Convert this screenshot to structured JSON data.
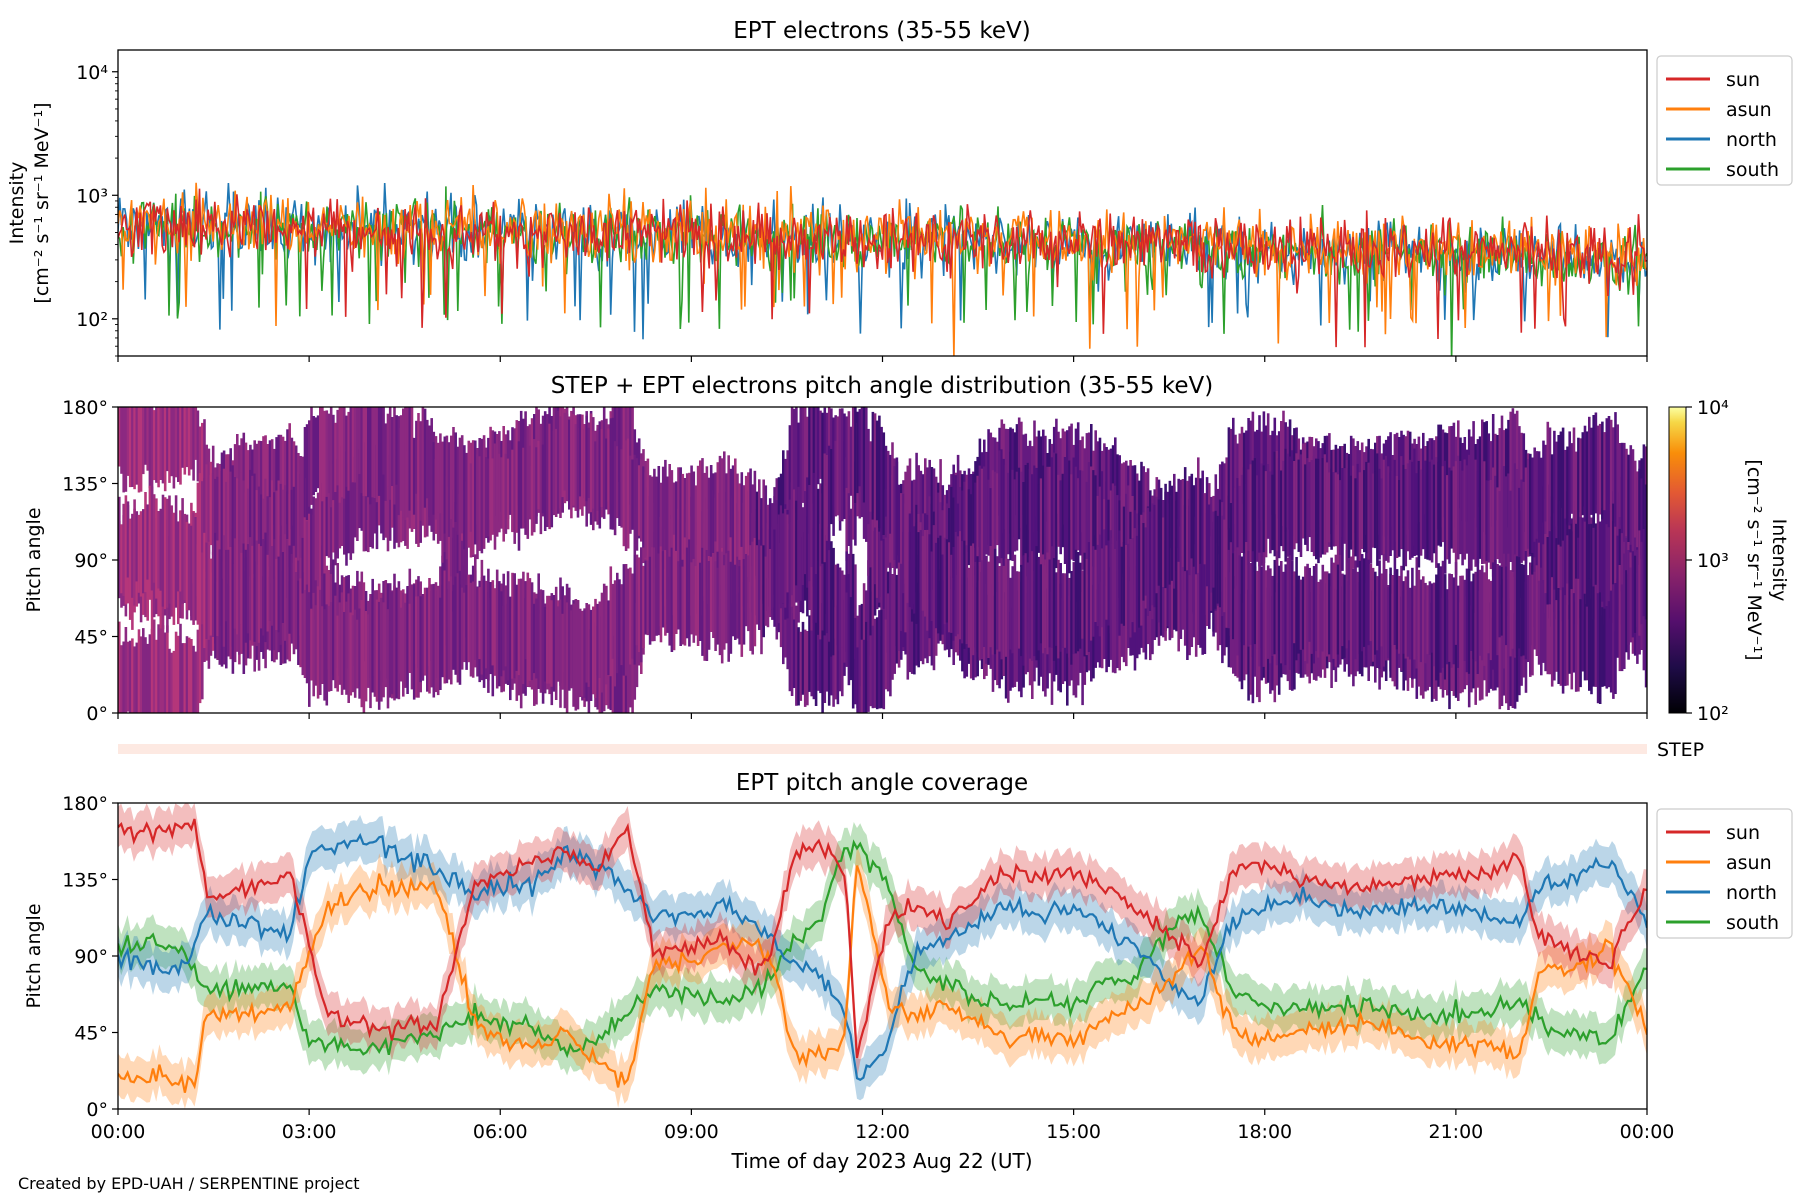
{
  "colors": {
    "sun": "#d62728",
    "asun": "#ff7f0e",
    "north": "#1f77b4",
    "south": "#2ca02c",
    "step_strip": "#fde9e2"
  },
  "chart_data": [
    {
      "type": "line",
      "title": "EPT electrons (35-55 keV)",
      "ylabel_line1": "Intensity",
      "ylabel_line2": "[cm⁻² s⁻¹ sr⁻¹ MeV⁻¹]",
      "yscale": "log",
      "ylim": [
        50,
        15000
      ],
      "yticks": [
        {
          "v": 100,
          "label": "10²"
        },
        {
          "v": 1000,
          "label": "10³"
        },
        {
          "v": 10000,
          "label": "10⁴"
        }
      ],
      "xlim_hours": [
        0,
        24
      ],
      "series": [
        {
          "name": "sun",
          "color": "#d62728",
          "level_start": 560,
          "level_end": 330
        },
        {
          "name": "asun",
          "color": "#ff7f0e",
          "level_start": 600,
          "level_end": 330
        },
        {
          "name": "north",
          "color": "#1f77b4",
          "level_start": 580,
          "level_end": 300
        },
        {
          "name": "south",
          "color": "#2ca02c",
          "level_start": 580,
          "level_end": 300
        }
      ],
      "legend": [
        "sun",
        "asun",
        "north",
        "south"
      ],
      "legend_position": "outside-right"
    },
    {
      "type": "heatmap",
      "title": "STEP + EPT electrons pitch angle distribution (35-55 keV)",
      "ylabel": "Pitch angle",
      "ylim": [
        0,
        180
      ],
      "yticks": [
        {
          "v": 0,
          "label": "0°"
        },
        {
          "v": 45,
          "label": "45°"
        },
        {
          "v": 90,
          "label": "90°"
        },
        {
          "v": 135,
          "label": "135°"
        },
        {
          "v": 180,
          "label": "180°"
        }
      ],
      "colorbar": {
        "label_line1": "Intensity",
        "label_line2": "[cm⁻² s⁻¹ sr⁻¹ MeV⁻¹]",
        "scale": "log",
        "range": [
          100,
          10000
        ],
        "ticks": [
          {
            "v": 100,
            "label": "10²"
          },
          {
            "v": 1000,
            "label": "10³"
          },
          {
            "v": 10000,
            "label": "10⁴"
          }
        ]
      },
      "step_label": "STEP"
    },
    {
      "type": "line",
      "title": "EPT pitch angle coverage",
      "ylabel": "Pitch angle",
      "xlabel": "Time of day 2023 Aug 22 (UT)",
      "ylim": [
        0,
        180
      ],
      "yticks": [
        {
          "v": 0,
          "label": "0°"
        },
        {
          "v": 45,
          "label": "45°"
        },
        {
          "v": 90,
          "label": "90°"
        },
        {
          "v": 135,
          "label": "135°"
        },
        {
          "v": 180,
          "label": "180°"
        }
      ],
      "xticks": [
        {
          "h": 0,
          "label": "00:00"
        },
        {
          "h": 3,
          "label": "03:00"
        },
        {
          "h": 6,
          "label": "06:00"
        },
        {
          "h": 9,
          "label": "09:00"
        },
        {
          "h": 12,
          "label": "12:00"
        },
        {
          "h": 15,
          "label": "15:00"
        },
        {
          "h": 18,
          "label": "18:00"
        },
        {
          "h": 21,
          "label": "21:00"
        },
        {
          "h": 24,
          "label": "00:00"
        }
      ],
      "series": [
        {
          "name": "sun",
          "color": "#d62728",
          "points": [
            [
              0,
              165
            ],
            [
              0.5,
              162
            ],
            [
              1.2,
              170
            ],
            [
              1.4,
              125
            ],
            [
              2,
              130
            ],
            [
              2.7,
              138
            ],
            [
              3.3,
              55
            ],
            [
              4.2,
              48
            ],
            [
              5,
              50
            ],
            [
              5.6,
              130
            ],
            [
              6,
              140
            ],
            [
              6.5,
              145
            ],
            [
              7,
              152
            ],
            [
              7.5,
              140
            ],
            [
              8,
              165
            ],
            [
              8.4,
              95
            ],
            [
              9,
              95
            ],
            [
              9.5,
              100
            ],
            [
              10,
              82
            ],
            [
              10.3,
              95
            ],
            [
              10.6,
              150
            ],
            [
              11,
              155
            ],
            [
              11.4,
              145
            ],
            [
              11.6,
              30
            ],
            [
              12.1,
              115
            ],
            [
              12.5,
              120
            ],
            [
              13,
              110
            ],
            [
              13.6,
              130
            ],
            [
              14,
              140
            ],
            [
              14.5,
              135
            ],
            [
              15,
              140
            ],
            [
              15.4,
              130
            ],
            [
              16,
              118
            ],
            [
              16.6,
              100
            ],
            [
              17,
              85
            ],
            [
              17.5,
              140
            ],
            [
              18,
              145
            ],
            [
              18.5,
              135
            ],
            [
              19.5,
              130
            ],
            [
              20.5,
              135
            ],
            [
              21.5,
              138
            ],
            [
              22,
              148
            ],
            [
              22.3,
              100
            ],
            [
              22.8,
              95
            ],
            [
              23.4,
              85
            ],
            [
              24,
              130
            ]
          ]
        },
        {
          "name": "asun",
          "color": "#ff7f0e",
          "points": [
            [
              0,
              18
            ],
            [
              0.5,
              20
            ],
            [
              1.2,
              15
            ],
            [
              1.4,
              60
            ],
            [
              2,
              55
            ],
            [
              2.7,
              60
            ],
            [
              3.3,
              120
            ],
            [
              4,
              130
            ],
            [
              5,
              130
            ],
            [
              5.6,
              50
            ],
            [
              6,
              40
            ],
            [
              6.5,
              35
            ],
            [
              7,
              45
            ],
            [
              7.5,
              30
            ],
            [
              8,
              15
            ],
            [
              8.4,
              85
            ],
            [
              9,
              90
            ],
            [
              9.5,
              95
            ],
            [
              10,
              100
            ],
            [
              10.3,
              80
            ],
            [
              10.6,
              35
            ],
            [
              11,
              30
            ],
            [
              11.4,
              40
            ],
            [
              11.6,
              145
            ],
            [
              12.1,
              60
            ],
            [
              12.5,
              55
            ],
            [
              13,
              60
            ],
            [
              13.6,
              50
            ],
            [
              14,
              40
            ],
            [
              14.5,
              45
            ],
            [
              15,
              40
            ],
            [
              15.4,
              50
            ],
            [
              16,
              60
            ],
            [
              16.6,
              80
            ],
            [
              17,
              95
            ],
            [
              17.5,
              45
            ],
            [
              18,
              40
            ],
            [
              18.5,
              45
            ],
            [
              19.5,
              50
            ],
            [
              20.5,
              40
            ],
            [
              21.5,
              38
            ],
            [
              22,
              30
            ],
            [
              22.3,
              80
            ],
            [
              22.8,
              85
            ],
            [
              23.4,
              95
            ],
            [
              24,
              45
            ]
          ]
        },
        {
          "name": "north",
          "color": "#1f77b4",
          "points": [
            [
              0,
              90
            ],
            [
              0.5,
              85
            ],
            [
              1,
              80
            ],
            [
              1.4,
              115
            ],
            [
              2,
              110
            ],
            [
              2.7,
              105
            ],
            [
              3,
              150
            ],
            [
              3.5,
              155
            ],
            [
              4,
              160
            ],
            [
              5,
              140
            ],
            [
              5.6,
              125
            ],
            [
              6,
              130
            ],
            [
              6.5,
              135
            ],
            [
              7,
              150
            ],
            [
              7.5,
              145
            ],
            [
              8,
              130
            ],
            [
              8.4,
              115
            ],
            [
              9,
              115
            ],
            [
              9.5,
              118
            ],
            [
              10,
              110
            ],
            [
              10.3,
              100
            ],
            [
              10.6,
              85
            ],
            [
              11,
              80
            ],
            [
              11.4,
              60
            ],
            [
              11.6,
              20
            ],
            [
              12,
              30
            ],
            [
              12.5,
              90
            ],
            [
              13,
              100
            ],
            [
              13.6,
              110
            ],
            [
              14,
              120
            ],
            [
              14.5,
              115
            ],
            [
              15,
              120
            ],
            [
              15.4,
              110
            ],
            [
              16,
              95
            ],
            [
              16.6,
              70
            ],
            [
              17,
              65
            ],
            [
              17.5,
              110
            ],
            [
              18,
              120
            ],
            [
              18.5,
              125
            ],
            [
              19.5,
              115
            ],
            [
              20.5,
              120
            ],
            [
              21.5,
              115
            ],
            [
              22,
              110
            ],
            [
              22.3,
              130
            ],
            [
              22.8,
              135
            ],
            [
              23.4,
              145
            ],
            [
              24,
              110
            ]
          ]
        },
        {
          "name": "south",
          "color": "#2ca02c",
          "points": [
            [
              0,
              95
            ],
            [
              0.5,
              100
            ],
            [
              1,
              95
            ],
            [
              1.4,
              70
            ],
            [
              2,
              70
            ],
            [
              2.7,
              72
            ],
            [
              3,
              40
            ],
            [
              3.5,
              38
            ],
            [
              4,
              35
            ],
            [
              5,
              45
            ],
            [
              5.6,
              55
            ],
            [
              6,
              50
            ],
            [
              6.5,
              48
            ],
            [
              7,
              35
            ],
            [
              7.5,
              40
            ],
            [
              8,
              55
            ],
            [
              8.4,
              70
            ],
            [
              9,
              70
            ],
            [
              9.5,
              62
            ],
            [
              10,
              70
            ],
            [
              10.3,
              80
            ],
            [
              10.6,
              100
            ],
            [
              11,
              110
            ],
            [
              11.4,
              150
            ],
            [
              11.6,
              155
            ],
            [
              12,
              140
            ],
            [
              12.5,
              85
            ],
            [
              13,
              75
            ],
            [
              13.6,
              65
            ],
            [
              14,
              60
            ],
            [
              14.5,
              65
            ],
            [
              15,
              60
            ],
            [
              15.4,
              70
            ],
            [
              16,
              80
            ],
            [
              16.6,
              110
            ],
            [
              17,
              115
            ],
            [
              17.5,
              70
            ],
            [
              18,
              60
            ],
            [
              18.5,
              58
            ],
            [
              19.5,
              62
            ],
            [
              20.5,
              55
            ],
            [
              21.5,
              58
            ],
            [
              22,
              65
            ],
            [
              22.3,
              50
            ],
            [
              22.8,
              45
            ],
            [
              23.4,
              40
            ],
            [
              24,
              85
            ]
          ]
        }
      ],
      "band_halfwidth_deg": 12,
      "legend": [
        "sun",
        "asun",
        "north",
        "south"
      ],
      "legend_position": "outside-right"
    }
  ],
  "footer": {
    "credit": "Created by EPD-UAH / SERPENTINE project"
  }
}
